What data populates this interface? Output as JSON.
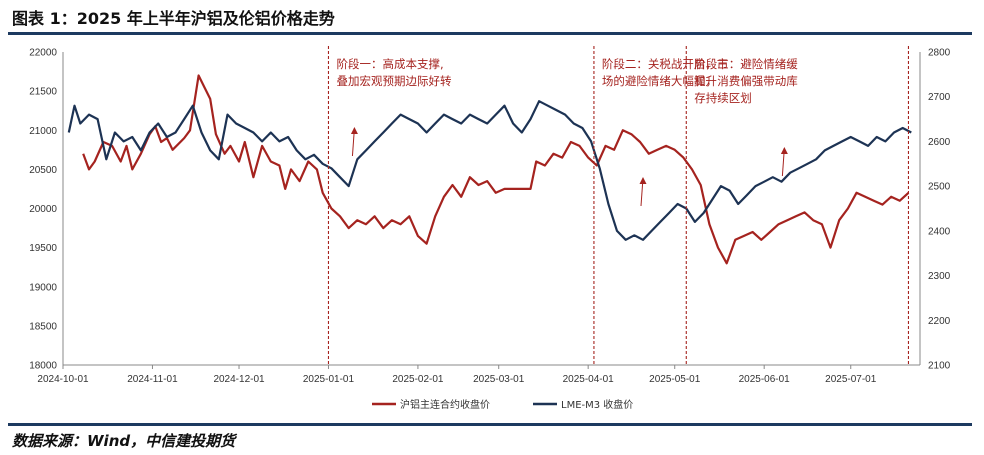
{
  "figure_title": "图表 1：2025 年上半年沪铝及伦铝价格走势",
  "source_note": "数据来源：Wind，中信建投期货",
  "colors": {
    "shfe": "#a5231f",
    "lme": "#1d3354",
    "annotation": "#a5231f",
    "rule": "#1d3a60"
  },
  "chart_data": {
    "type": "line",
    "title": "",
    "xlabel": "",
    "ylabel": "",
    "x_start": "2024-10-01",
    "x_end": "2025-07-25",
    "x_ticks": [
      "2024-10-01",
      "2024-11-01",
      "2024-12-01",
      "2025-01-01",
      "2025-02-01",
      "2025-03-01",
      "2025-04-01",
      "2025-05-01",
      "2025-06-01",
      "2025-07-01"
    ],
    "y_left": {
      "min": 18000,
      "max": 22000,
      "ticks": [
        18000,
        18500,
        19000,
        19500,
        20000,
        20500,
        21000,
        21500,
        22000
      ]
    },
    "y_right": {
      "min": 2100,
      "max": 2800,
      "ticks": [
        2100,
        2200,
        2300,
        2400,
        2500,
        2600,
        2700,
        2800
      ]
    },
    "legend_position": "bottom",
    "series": [
      {
        "name": "沪铝主连合约收盘价",
        "axis": "left",
        "points": [
          [
            "2024-10-08",
            20700
          ],
          [
            "2024-10-10",
            20500
          ],
          [
            "2024-10-12",
            20600
          ],
          [
            "2024-10-15",
            20850
          ],
          [
            "2024-10-18",
            20800
          ],
          [
            "2024-10-21",
            20600
          ],
          [
            "2024-10-23",
            20800
          ],
          [
            "2024-10-25",
            20500
          ],
          [
            "2024-10-28",
            20700
          ],
          [
            "2024-10-31",
            20950
          ],
          [
            "2024-11-02",
            21050
          ],
          [
            "2024-11-04",
            20850
          ],
          [
            "2024-11-06",
            20900
          ],
          [
            "2024-11-08",
            20750
          ],
          [
            "2024-11-12",
            20900
          ],
          [
            "2024-11-14",
            21000
          ],
          [
            "2024-11-17",
            21700
          ],
          [
            "2024-11-19",
            21550
          ],
          [
            "2024-11-21",
            21400
          ],
          [
            "2024-11-23",
            20950
          ],
          [
            "2024-11-26",
            20700
          ],
          [
            "2024-11-28",
            20800
          ],
          [
            "2024-12-01",
            20600
          ],
          [
            "2024-12-03",
            20850
          ],
          [
            "2024-12-06",
            20400
          ],
          [
            "2024-12-09",
            20800
          ],
          [
            "2024-12-12",
            20600
          ],
          [
            "2024-12-15",
            20550
          ],
          [
            "2024-12-17",
            20250
          ],
          [
            "2024-12-19",
            20500
          ],
          [
            "2024-12-22",
            20350
          ],
          [
            "2024-12-25",
            20600
          ],
          [
            "2024-12-28",
            20500
          ],
          [
            "2024-12-30",
            20200
          ],
          [
            "2025-01-02",
            20000
          ],
          [
            "2025-01-05",
            19900
          ],
          [
            "2025-01-08",
            19750
          ],
          [
            "2025-01-11",
            19850
          ],
          [
            "2025-01-14",
            19800
          ],
          [
            "2025-01-17",
            19900
          ],
          [
            "2025-01-20",
            19750
          ],
          [
            "2025-01-23",
            19850
          ],
          [
            "2025-01-26",
            19800
          ],
          [
            "2025-01-29",
            19900
          ],
          [
            "2025-02-01",
            19650
          ],
          [
            "2025-02-04",
            19550
          ],
          [
            "2025-02-07",
            19900
          ],
          [
            "2025-02-10",
            20150
          ],
          [
            "2025-02-13",
            20300
          ],
          [
            "2025-02-16",
            20150
          ],
          [
            "2025-02-19",
            20400
          ],
          [
            "2025-02-22",
            20300
          ],
          [
            "2025-02-25",
            20350
          ],
          [
            "2025-02-28",
            20200
          ],
          [
            "2025-03-03",
            20250
          ],
          [
            "2025-03-08",
            20250
          ],
          [
            "2025-03-12",
            20250
          ],
          [
            "2025-03-14",
            20600
          ],
          [
            "2025-03-17",
            20550
          ],
          [
            "2025-03-20",
            20700
          ],
          [
            "2025-03-23",
            20650
          ],
          [
            "2025-03-26",
            20850
          ],
          [
            "2025-03-29",
            20800
          ],
          [
            "2025-04-01",
            20650
          ],
          [
            "2025-04-04",
            20550
          ],
          [
            "2025-04-07",
            20800
          ],
          [
            "2025-04-10",
            20750
          ],
          [
            "2025-04-13",
            21000
          ],
          [
            "2025-04-16",
            20950
          ],
          [
            "2025-04-19",
            20850
          ],
          [
            "2025-04-22",
            20700
          ],
          [
            "2025-04-25",
            20750
          ],
          [
            "2025-04-28",
            20800
          ],
          [
            "2025-05-01",
            20750
          ],
          [
            "2025-05-04",
            20650
          ],
          [
            "2025-05-07",
            20500
          ],
          [
            "2025-05-10",
            20300
          ],
          [
            "2025-05-13",
            19800
          ],
          [
            "2025-05-16",
            19500
          ],
          [
            "2025-05-19",
            19300
          ],
          [
            "2025-05-22",
            19600
          ],
          [
            "2025-05-25",
            19650
          ],
          [
            "2025-05-28",
            19700
          ],
          [
            "2025-05-31",
            19600
          ],
          [
            "2025-06-03",
            19700
          ],
          [
            "2025-06-06",
            19800
          ],
          [
            "2025-06-09",
            19850
          ],
          [
            "2025-06-12",
            19900
          ],
          [
            "2025-06-15",
            19950
          ],
          [
            "2025-06-18",
            19850
          ],
          [
            "2025-06-21",
            19800
          ],
          [
            "2025-06-24",
            19500
          ],
          [
            "2025-06-27",
            19850
          ],
          [
            "2025-06-30",
            20000
          ],
          [
            "2025-07-03",
            20200
          ],
          [
            "2025-07-06",
            20150
          ],
          [
            "2025-07-09",
            20100
          ],
          [
            "2025-07-12",
            20050
          ],
          [
            "2025-07-15",
            20150
          ],
          [
            "2025-07-18",
            20100
          ],
          [
            "2025-07-21",
            20200
          ]
        ]
      },
      {
        "name": "LME-M3 收盘价",
        "axis": "right",
        "points": [
          [
            "2024-10-03",
            2620
          ],
          [
            "2024-10-05",
            2680
          ],
          [
            "2024-10-07",
            2640
          ],
          [
            "2024-10-10",
            2660
          ],
          [
            "2024-10-13",
            2650
          ],
          [
            "2024-10-16",
            2560
          ],
          [
            "2024-10-19",
            2620
          ],
          [
            "2024-10-22",
            2600
          ],
          [
            "2024-10-25",
            2610
          ],
          [
            "2024-10-28",
            2580
          ],
          [
            "2024-10-31",
            2620
          ],
          [
            "2024-11-03",
            2640
          ],
          [
            "2024-11-06",
            2610
          ],
          [
            "2024-11-09",
            2620
          ],
          [
            "2024-11-12",
            2650
          ],
          [
            "2024-11-15",
            2680
          ],
          [
            "2024-11-18",
            2620
          ],
          [
            "2024-11-21",
            2580
          ],
          [
            "2024-11-24",
            2560
          ],
          [
            "2024-11-27",
            2660
          ],
          [
            "2024-11-30",
            2640
          ],
          [
            "2024-12-03",
            2630
          ],
          [
            "2024-12-06",
            2620
          ],
          [
            "2024-12-09",
            2600
          ],
          [
            "2024-12-12",
            2620
          ],
          [
            "2024-12-15",
            2600
          ],
          [
            "2024-12-18",
            2610
          ],
          [
            "2024-12-21",
            2580
          ],
          [
            "2024-12-24",
            2560
          ],
          [
            "2024-12-27",
            2570
          ],
          [
            "2024-12-30",
            2550
          ],
          [
            "2025-01-02",
            2540
          ],
          [
            "2025-01-05",
            2520
          ],
          [
            "2025-01-08",
            2500
          ],
          [
            "2025-01-11",
            2560
          ],
          [
            "2025-01-14",
            2580
          ],
          [
            "2025-01-17",
            2600
          ],
          [
            "2025-01-20",
            2620
          ],
          [
            "2025-01-23",
            2640
          ],
          [
            "2025-01-26",
            2660
          ],
          [
            "2025-01-29",
            2650
          ],
          [
            "2025-02-01",
            2640
          ],
          [
            "2025-02-04",
            2620
          ],
          [
            "2025-02-07",
            2640
          ],
          [
            "2025-02-10",
            2660
          ],
          [
            "2025-02-13",
            2650
          ],
          [
            "2025-02-16",
            2640
          ],
          [
            "2025-02-19",
            2660
          ],
          [
            "2025-02-22",
            2650
          ],
          [
            "2025-02-25",
            2640
          ],
          [
            "2025-02-28",
            2660
          ],
          [
            "2025-03-03",
            2680
          ],
          [
            "2025-03-06",
            2640
          ],
          [
            "2025-03-09",
            2620
          ],
          [
            "2025-03-12",
            2650
          ],
          [
            "2025-03-15",
            2690
          ],
          [
            "2025-03-18",
            2680
          ],
          [
            "2025-03-21",
            2670
          ],
          [
            "2025-03-24",
            2660
          ],
          [
            "2025-03-27",
            2640
          ],
          [
            "2025-03-30",
            2630
          ],
          [
            "2025-04-02",
            2600
          ],
          [
            "2025-04-05",
            2540
          ],
          [
            "2025-04-08",
            2460
          ],
          [
            "2025-04-11",
            2400
          ],
          [
            "2025-04-14",
            2380
          ],
          [
            "2025-04-17",
            2390
          ],
          [
            "2025-04-20",
            2380
          ],
          [
            "2025-04-23",
            2400
          ],
          [
            "2025-04-26",
            2420
          ],
          [
            "2025-04-29",
            2440
          ],
          [
            "2025-05-02",
            2460
          ],
          [
            "2025-05-05",
            2450
          ],
          [
            "2025-05-08",
            2420
          ],
          [
            "2025-05-11",
            2440
          ],
          [
            "2025-05-14",
            2470
          ],
          [
            "2025-05-17",
            2500
          ],
          [
            "2025-05-20",
            2490
          ],
          [
            "2025-05-23",
            2460
          ],
          [
            "2025-05-26",
            2480
          ],
          [
            "2025-05-29",
            2500
          ],
          [
            "2025-06-01",
            2510
          ],
          [
            "2025-06-04",
            2520
          ],
          [
            "2025-06-07",
            2510
          ],
          [
            "2025-06-10",
            2530
          ],
          [
            "2025-06-13",
            2540
          ],
          [
            "2025-06-16",
            2550
          ],
          [
            "2025-06-19",
            2560
          ],
          [
            "2025-06-22",
            2580
          ],
          [
            "2025-06-25",
            2590
          ],
          [
            "2025-06-28",
            2600
          ],
          [
            "2025-07-01",
            2610
          ],
          [
            "2025-07-04",
            2600
          ],
          [
            "2025-07-07",
            2590
          ],
          [
            "2025-07-10",
            2610
          ],
          [
            "2025-07-13",
            2600
          ],
          [
            "2025-07-16",
            2620
          ],
          [
            "2025-07-19",
            2630
          ],
          [
            "2025-07-22",
            2620
          ]
        ]
      }
    ],
    "phase_markers": [
      {
        "date": "2025-01-01",
        "label_lines": [
          "阶段一：高成本支撑,",
          "叠加宏观预期边际好转"
        ]
      },
      {
        "date": "2025-04-03",
        "label_lines": [
          "阶段二：关税战开启，市",
          "场的避险情绪大幅提升"
        ]
      },
      {
        "date": "2025-05-05",
        "label_lines": [
          "阶段三：避险情绪缓",
          "和，消费偏强带动库",
          "存持续区划"
        ]
      },
      {
        "date": "2025-07-21",
        "label_lines": []
      }
    ],
    "arrows": [
      {
        "date": "2025-01-10",
        "note": "up"
      },
      {
        "date": "2025-04-20",
        "note": "up"
      },
      {
        "date": "2025-06-08",
        "note": "up"
      }
    ]
  }
}
